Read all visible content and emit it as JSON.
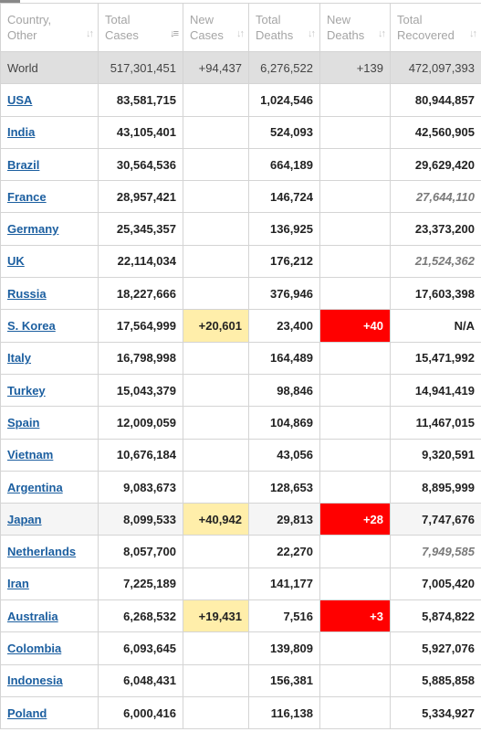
{
  "headers": [
    {
      "label": "Country,\nOther",
      "sort_icon": "sort-icon"
    },
    {
      "label": "Total\nCases",
      "sort_icon": "sort-desc-icon"
    },
    {
      "label": "New\nCases",
      "sort_icon": "sort-icon"
    },
    {
      "label": "Total\nDeaths",
      "sort_icon": "sort-icon"
    },
    {
      "label": "New\nDeaths",
      "sort_icon": "sort-icon"
    },
    {
      "label": "Total\nRecovered",
      "sort_icon": "sort-icon"
    }
  ],
  "sort_glyph": "↓↑",
  "sort_desc_glyph": "↓≡",
  "colors": {
    "new_cases_bg": "#ffeeaa",
    "new_deaths_bg": "#ff0000",
    "world_bg": "#dfdfdf",
    "link": "#1c5fa0"
  },
  "world": {
    "country": "World",
    "total_cases": "517,301,451",
    "new_cases": "+94,437",
    "total_deaths": "6,276,522",
    "new_deaths": "+139",
    "total_recovered": "472,097,393"
  },
  "rows": [
    {
      "country": "USA",
      "total_cases": "83,581,715",
      "new_cases": "",
      "total_deaths": "1,024,546",
      "new_deaths": "",
      "total_recovered": "80,944,857",
      "recovered_muted": false,
      "highlight": false
    },
    {
      "country": "India",
      "total_cases": "43,105,401",
      "new_cases": "",
      "total_deaths": "524,093",
      "new_deaths": "",
      "total_recovered": "42,560,905",
      "recovered_muted": false,
      "highlight": false
    },
    {
      "country": "Brazil",
      "total_cases": "30,564,536",
      "new_cases": "",
      "total_deaths": "664,189",
      "new_deaths": "",
      "total_recovered": "29,629,420",
      "recovered_muted": false,
      "highlight": false
    },
    {
      "country": "France",
      "total_cases": "28,957,421",
      "new_cases": "",
      "total_deaths": "146,724",
      "new_deaths": "",
      "total_recovered": "27,644,110",
      "recovered_muted": true,
      "highlight": false
    },
    {
      "country": "Germany",
      "total_cases": "25,345,357",
      "new_cases": "",
      "total_deaths": "136,925",
      "new_deaths": "",
      "total_recovered": "23,373,200",
      "recovered_muted": false,
      "highlight": false
    },
    {
      "country": "UK",
      "total_cases": "22,114,034",
      "new_cases": "",
      "total_deaths": "176,212",
      "new_deaths": "",
      "total_recovered": "21,524,362",
      "recovered_muted": true,
      "highlight": false
    },
    {
      "country": "Russia",
      "total_cases": "18,227,666",
      "new_cases": "",
      "total_deaths": "376,946",
      "new_deaths": "",
      "total_recovered": "17,603,398",
      "recovered_muted": false,
      "highlight": false
    },
    {
      "country": "S. Korea",
      "total_cases": "17,564,999",
      "new_cases": "+20,601",
      "total_deaths": "23,400",
      "new_deaths": "+40",
      "total_recovered": "N/A",
      "recovered_muted": false,
      "highlight": false
    },
    {
      "country": "Italy",
      "total_cases": "16,798,998",
      "new_cases": "",
      "total_deaths": "164,489",
      "new_deaths": "",
      "total_recovered": "15,471,992",
      "recovered_muted": false,
      "highlight": false
    },
    {
      "country": "Turkey",
      "total_cases": "15,043,379",
      "new_cases": "",
      "total_deaths": "98,846",
      "new_deaths": "",
      "total_recovered": "14,941,419",
      "recovered_muted": false,
      "highlight": false
    },
    {
      "country": "Spain",
      "total_cases": "12,009,059",
      "new_cases": "",
      "total_deaths": "104,869",
      "new_deaths": "",
      "total_recovered": "11,467,015",
      "recovered_muted": false,
      "highlight": false
    },
    {
      "country": "Vietnam",
      "total_cases": "10,676,184",
      "new_cases": "",
      "total_deaths": "43,056",
      "new_deaths": "",
      "total_recovered": "9,320,591",
      "recovered_muted": false,
      "highlight": false
    },
    {
      "country": "Argentina",
      "total_cases": "9,083,673",
      "new_cases": "",
      "total_deaths": "128,653",
      "new_deaths": "",
      "total_recovered": "8,895,999",
      "recovered_muted": false,
      "highlight": false
    },
    {
      "country": "Japan",
      "total_cases": "8,099,533",
      "new_cases": "+40,942",
      "total_deaths": "29,813",
      "new_deaths": "+28",
      "total_recovered": "7,747,676",
      "recovered_muted": false,
      "highlight": true
    },
    {
      "country": "Netherlands",
      "total_cases": "8,057,700",
      "new_cases": "",
      "total_deaths": "22,270",
      "new_deaths": "",
      "total_recovered": "7,949,585",
      "recovered_muted": true,
      "highlight": false
    },
    {
      "country": "Iran",
      "total_cases": "7,225,189",
      "new_cases": "",
      "total_deaths": "141,177",
      "new_deaths": "",
      "total_recovered": "7,005,420",
      "recovered_muted": false,
      "highlight": false
    },
    {
      "country": "Australia",
      "total_cases": "6,268,532",
      "new_cases": "+19,431",
      "total_deaths": "7,516",
      "new_deaths": "+3",
      "total_recovered": "5,874,822",
      "recovered_muted": false,
      "highlight": false
    },
    {
      "country": "Colombia",
      "total_cases": "6,093,645",
      "new_cases": "",
      "total_deaths": "139,809",
      "new_deaths": "",
      "total_recovered": "5,927,076",
      "recovered_muted": false,
      "highlight": false
    },
    {
      "country": "Indonesia",
      "total_cases": "6,048,431",
      "new_cases": "",
      "total_deaths": "156,381",
      "new_deaths": "",
      "total_recovered": "5,885,858",
      "recovered_muted": false,
      "highlight": false
    },
    {
      "country": "Poland",
      "total_cases": "6,000,416",
      "new_cases": "",
      "total_deaths": "116,138",
      "new_deaths": "",
      "total_recovered": "5,334,927",
      "recovered_muted": false,
      "highlight": false
    }
  ]
}
